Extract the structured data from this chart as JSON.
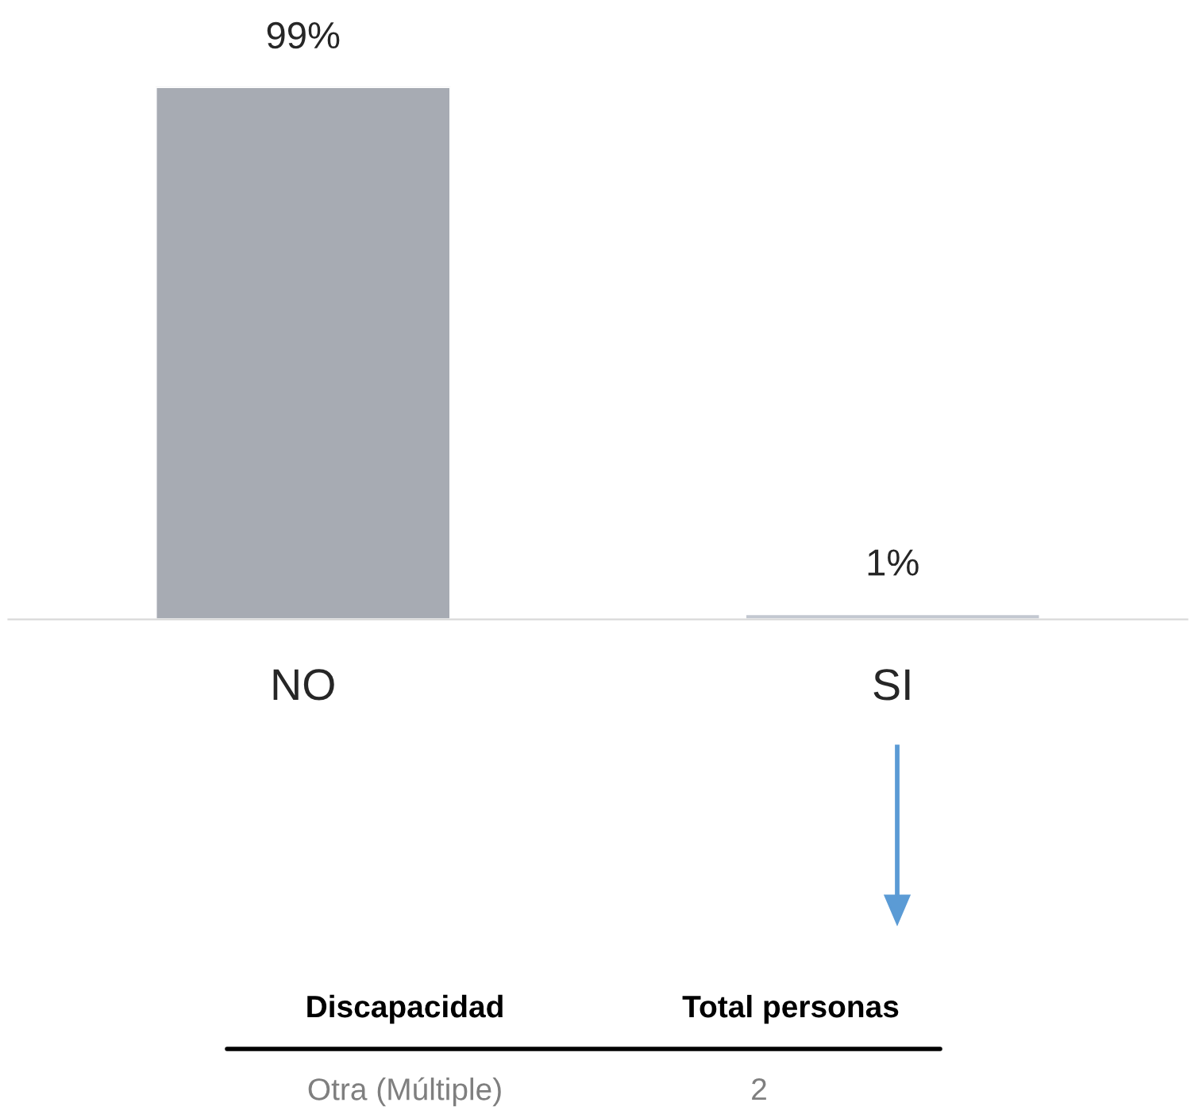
{
  "chart_data": {
    "type": "bar",
    "categories": [
      "NO",
      "SI"
    ],
    "values": [
      99,
      1
    ],
    "value_labels": [
      "99%",
      "1%"
    ],
    "colors": [
      "#a7abb3",
      "#c3c8d1"
    ],
    "grid": false,
    "legend": false,
    "annotations": [
      "Discapacidad",
      "Total personas",
      "Otra (Múltiple)",
      "2"
    ]
  }
}
